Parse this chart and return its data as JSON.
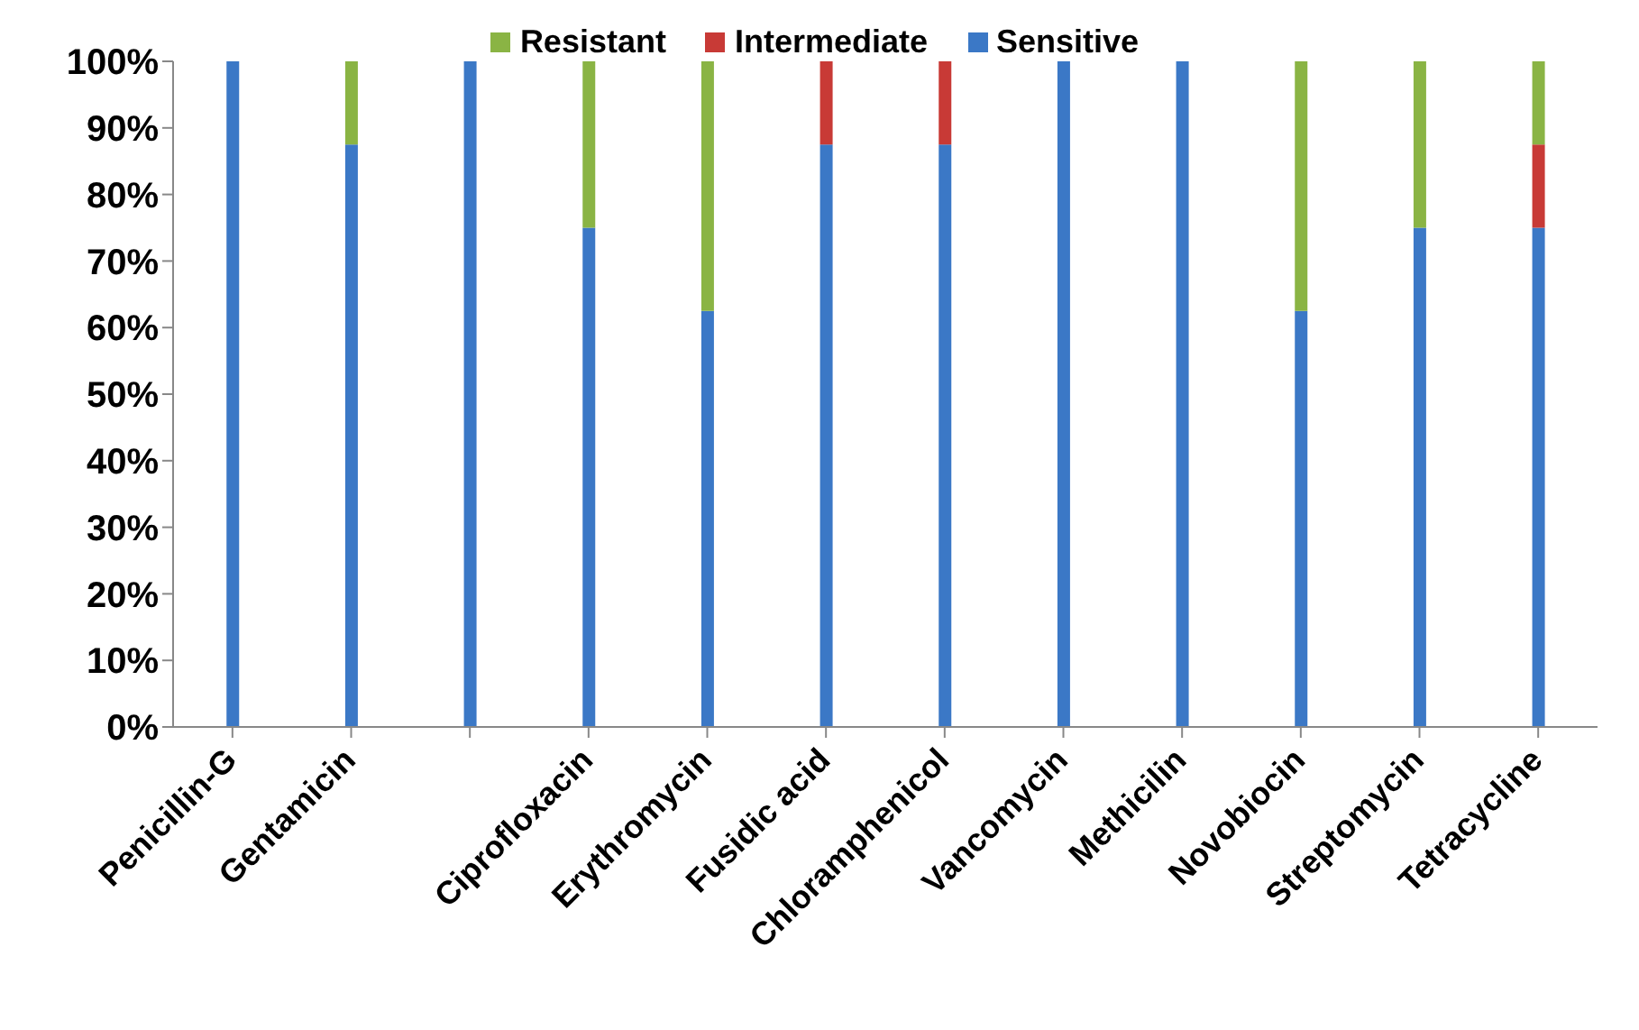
{
  "chart_data": {
    "type": "bar",
    "stacked": true,
    "categories": [
      "Penicillin-G",
      "Gentamicin",
      null,
      "Ciprofloxacin",
      "Erythromycin",
      "Fusidic acid",
      "Chloramphenicol",
      "Vancomycin",
      "Methicilin",
      "Novobiocin",
      "Streptomycin",
      "Tetracycline"
    ],
    "series": [
      {
        "name": "Sensitive",
        "color": "#3b78c6",
        "values": [
          100,
          87.5,
          100,
          75,
          62.5,
          87.5,
          87.5,
          100,
          100,
          62.5,
          75,
          75
        ]
      },
      {
        "name": "Intermediate",
        "color": "#c83a36",
        "values": [
          0,
          0,
          0,
          0,
          0,
          12.5,
          12.5,
          0,
          0,
          0,
          0,
          12.5
        ]
      },
      {
        "name": "Resistant",
        "color": "#8ab444",
        "values": [
          0,
          12.5,
          0,
          25,
          37.5,
          0,
          0,
          0,
          0,
          37.5,
          25,
          12.5
        ]
      }
    ],
    "ylim": [
      0,
      100
    ],
    "yticks": [
      {
        "value": 0,
        "label": "0%"
      },
      {
        "value": 10,
        "label": "10%"
      },
      {
        "value": 20,
        "label": "20%"
      },
      {
        "value": 30,
        "label": "30%"
      },
      {
        "value": 40,
        "label": "40%"
      },
      {
        "value": 50,
        "label": "50%"
      },
      {
        "value": 60,
        "label": "60%"
      },
      {
        "value": 70,
        "label": "70%"
      },
      {
        "value": 80,
        "label": "80%"
      },
      {
        "value": 90,
        "label": "90%"
      },
      {
        "value": 100,
        "label": "100%"
      }
    ],
    "grid": false,
    "legend": "top"
  }
}
